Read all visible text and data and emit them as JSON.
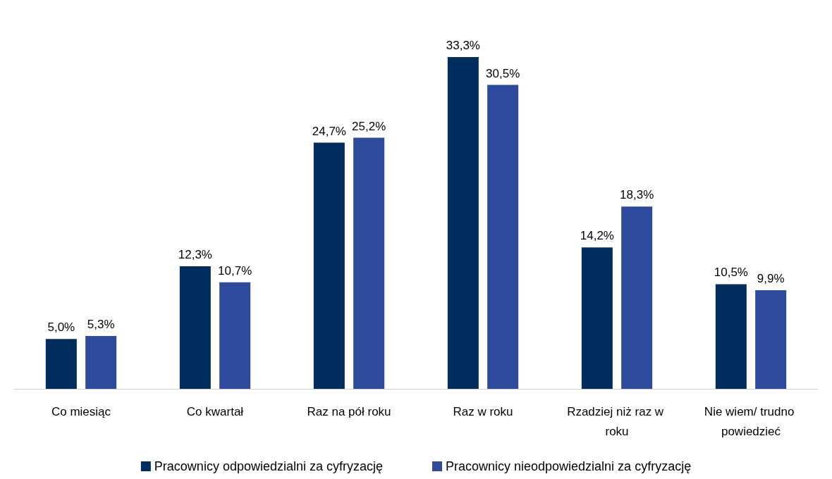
{
  "chart_data": {
    "type": "bar",
    "categories": [
      "Co miesiąc",
      "Co kwartał",
      "Raz na pół roku",
      "Raz w roku",
      "Rzadziej niż raz w roku",
      "Nie wiem/ trudno powiedzieć"
    ],
    "series": [
      {
        "name": "Pracownicy odpowiedzialni za cyfryzację",
        "color": "#002c5e",
        "values": [
          5.0,
          12.3,
          24.7,
          33.3,
          14.2,
          10.5
        ],
        "value_labels": [
          "5,0%",
          "12,3%",
          "24,7%",
          "33,3%",
          "14,2%",
          "10,5%"
        ]
      },
      {
        "name": "Pracownicy nieodpowiedzialni za cyfryzację",
        "color": "#2e4a9c",
        "values": [
          5.3,
          10.7,
          25.2,
          30.5,
          18.3,
          9.9
        ],
        "value_labels": [
          "5,3%",
          "10,7%",
          "25,2%",
          "30,5%",
          "18,3%",
          "9,9%"
        ]
      }
    ],
    "legend": "bottom"
  }
}
